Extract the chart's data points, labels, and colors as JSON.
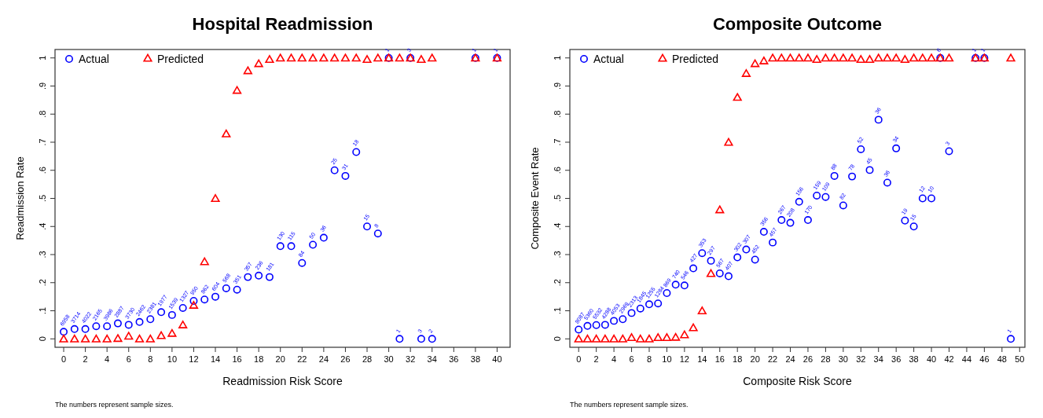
{
  "chart_data": [
    {
      "type": "scatter",
      "title": "Hospital Readmission",
      "xlabel": "Readmission Risk Score",
      "ylabel": "Readmission Rate",
      "xlim": [
        -0.8,
        41.2
      ],
      "ylim": [
        -0.03,
        1.03
      ],
      "xticks": [
        0,
        2,
        4,
        6,
        8,
        10,
        12,
        14,
        16,
        18,
        20,
        22,
        24,
        26,
        28,
        30,
        32,
        34,
        36,
        38,
        40
      ],
      "yticks": [
        {
          "value": 0,
          "label": "0"
        },
        {
          "value": 0.1,
          "label": ".1"
        },
        {
          "value": 0.2,
          "label": ".2"
        },
        {
          "value": 0.3,
          "label": ".3"
        },
        {
          "value": 0.4,
          "label": ".4"
        },
        {
          "value": 0.5,
          "label": ".5"
        },
        {
          "value": 0.6,
          "label": ".6"
        },
        {
          "value": 0.7,
          "label": ".7"
        },
        {
          "value": 0.8,
          "label": ".8"
        },
        {
          "value": 0.9,
          "label": ".9"
        },
        {
          "value": 1,
          "label": "1"
        }
      ],
      "legend": "top left",
      "annotations": [
        "The numbers represent sample sizes.",
        {
          "text": "6958",
          "x": 0,
          "y": 0.025
        },
        {
          "text": "3714",
          "x": 1,
          "y": 0.035
        },
        {
          "text": "4022",
          "x": 2,
          "y": 0.035
        },
        {
          "text": "2165",
          "x": 3,
          "y": 0.045
        },
        {
          "text": "3986",
          "x": 4,
          "y": 0.045
        },
        {
          "text": "2887",
          "x": 5,
          "y": 0.055
        },
        {
          "text": "3730",
          "x": 6,
          "y": 0.05
        },
        {
          "text": "2462",
          "x": 7,
          "y": 0.06
        },
        {
          "text": "2381",
          "x": 8,
          "y": 0.07
        },
        {
          "text": "1977",
          "x": 9,
          "y": 0.095
        },
        {
          "text": "1539",
          "x": 10,
          "y": 0.085
        },
        {
          "text": "1327",
          "x": 11,
          "y": 0.11
        },
        {
          "text": "950",
          "x": 12,
          "y": 0.135
        },
        {
          "text": "862",
          "x": 13,
          "y": 0.14
        },
        {
          "text": "604",
          "x": 14,
          "y": 0.15
        },
        {
          "text": "568",
          "x": 15,
          "y": 0.18
        },
        {
          "text": "351",
          "x": 16,
          "y": 0.175
        },
        {
          "text": "357",
          "x": 17,
          "y": 0.22
        },
        {
          "text": "236",
          "x": 18,
          "y": 0.225
        },
        {
          "text": "181",
          "x": 19,
          "y": 0.22
        },
        {
          "text": "130",
          "x": 20,
          "y": 0.33
        },
        {
          "text": "115",
          "x": 21,
          "y": 0.33
        },
        {
          "text": "84",
          "x": 22,
          "y": 0.27
        },
        {
          "text": "50",
          "x": 23,
          "y": 0.335
        },
        {
          "text": "36",
          "x": 24,
          "y": 0.36
        },
        {
          "text": "25",
          "x": 25,
          "y": 0.6
        },
        {
          "text": "31",
          "x": 26,
          "y": 0.58
        },
        {
          "text": "18",
          "x": 27,
          "y": 0.665
        },
        {
          "text": "15",
          "x": 28,
          "y": 0.4
        },
        {
          "text": "8",
          "x": 29,
          "y": 0.375
        },
        {
          "text": "1",
          "x": 30,
          "y": 1
        },
        {
          "text": "1",
          "x": 31,
          "y": 0
        },
        {
          "text": "3",
          "x": 32,
          "y": 1
        },
        {
          "text": "3",
          "x": 33,
          "y": 0
        },
        {
          "text": "2",
          "x": 34,
          "y": 0
        },
        {
          "text": "1",
          "x": 38,
          "y": 1
        },
        {
          "text": "1",
          "x": 40,
          "y": 1
        }
      ],
      "series": [
        {
          "name": "Actual",
          "color": "#0000ff",
          "marker": "circle",
          "x": [
            0,
            1,
            2,
            3,
            4,
            5,
            6,
            7,
            8,
            9,
            10,
            11,
            12,
            13,
            14,
            15,
            16,
            17,
            18,
            19,
            20,
            21,
            22,
            23,
            24,
            25,
            26,
            27,
            28,
            29,
            30,
            31,
            32,
            33,
            34,
            38,
            40
          ],
          "values": [
            0.025,
            0.035,
            0.035,
            0.045,
            0.045,
            0.055,
            0.05,
            0.06,
            0.07,
            0.095,
            0.085,
            0.11,
            0.135,
            0.14,
            0.15,
            0.18,
            0.175,
            0.22,
            0.225,
            0.22,
            0.33,
            0.33,
            0.27,
            0.335,
            0.36,
            0.6,
            0.58,
            0.665,
            0.4,
            0.375,
            1,
            0,
            1,
            0,
            0,
            1,
            1
          ]
        },
        {
          "name": "Predicted",
          "color": "#ff0000",
          "marker": "triangle",
          "x": [
            0,
            1,
            2,
            3,
            4,
            5,
            6,
            7,
            8,
            9,
            10,
            11,
            12,
            13,
            14,
            15,
            16,
            17,
            18,
            19,
            20,
            21,
            22,
            23,
            24,
            25,
            26,
            27,
            28,
            29,
            30,
            31,
            32,
            33,
            34,
            38,
            40
          ],
          "values": [
            0,
            0,
            0,
            0,
            0,
            0.002,
            0.01,
            0,
            0,
            0.012,
            0.02,
            0.05,
            0.12,
            0.275,
            0.5,
            0.73,
            0.885,
            0.955,
            0.98,
            0.995,
            1,
            1,
            1,
            1,
            1,
            1,
            1,
            1,
            0.995,
            1,
            1,
            1,
            1,
            0.995,
            1,
            1,
            1
          ]
        }
      ]
    },
    {
      "type": "scatter",
      "title": "Composite Outcome",
      "xlabel": "Composite Risk Score",
      "ylabel": "Composite Event Rate",
      "xlim": [
        -1,
        50.6
      ],
      "ylim": [
        -0.03,
        1.03
      ],
      "xticks": [
        0,
        2,
        4,
        6,
        8,
        10,
        12,
        14,
        16,
        18,
        20,
        22,
        24,
        26,
        28,
        30,
        32,
        34,
        36,
        38,
        40,
        42,
        44,
        46,
        48,
        50
      ],
      "yticks": [
        {
          "value": 0,
          "label": "0"
        },
        {
          "value": 0.1,
          "label": ".1"
        },
        {
          "value": 0.2,
          "label": ".2"
        },
        {
          "value": 0.3,
          "label": ".3"
        },
        {
          "value": 0.4,
          "label": ".4"
        },
        {
          "value": 0.5,
          "label": ".5"
        },
        {
          "value": 0.6,
          "label": ".6"
        },
        {
          "value": 0.7,
          "label": ".7"
        },
        {
          "value": 0.8,
          "label": ".8"
        },
        {
          "value": 0.9,
          "label": ".9"
        },
        {
          "value": 1,
          "label": "1"
        }
      ],
      "legend": "top left",
      "annotations": [
        "The numbers represent sample sizes.",
        {
          "text": "8087",
          "x": 0,
          "y": 0.033
        },
        {
          "text": "5360",
          "x": 1,
          "y": 0.046
        },
        {
          "text": "5532",
          "x": 2,
          "y": 0.049
        },
        {
          "text": "4288",
          "x": 3,
          "y": 0.05
        },
        {
          "text": "4053",
          "x": 4,
          "y": 0.064
        },
        {
          "text": "2969",
          "x": 5,
          "y": 0.07
        },
        {
          "text": "2313",
          "x": 6,
          "y": 0.092
        },
        {
          "text": "1845",
          "x": 7,
          "y": 0.108
        },
        {
          "text": "1255",
          "x": 8,
          "y": 0.123
        },
        {
          "text": "1284",
          "x": 9,
          "y": 0.126
        },
        {
          "text": "869",
          "x": 10,
          "y": 0.163
        },
        {
          "text": "740",
          "x": 11,
          "y": 0.193
        },
        {
          "text": "546",
          "x": 12,
          "y": 0.19
        },
        {
          "text": "427",
          "x": 13,
          "y": 0.251
        },
        {
          "text": "353",
          "x": 14,
          "y": 0.305
        },
        {
          "text": "297",
          "x": 15,
          "y": 0.278
        },
        {
          "text": "567",
          "x": 16,
          "y": 0.233
        },
        {
          "text": "407",
          "x": 17,
          "y": 0.223
        },
        {
          "text": "302",
          "x": 18,
          "y": 0.29
        },
        {
          "text": "307",
          "x": 19,
          "y": 0.318
        },
        {
          "text": "452",
          "x": 20,
          "y": 0.282
        },
        {
          "text": "356",
          "x": 21,
          "y": 0.381
        },
        {
          "text": "457",
          "x": 22,
          "y": 0.343
        },
        {
          "text": "267",
          "x": 23,
          "y": 0.423
        },
        {
          "text": "208",
          "x": 24,
          "y": 0.413
        },
        {
          "text": "156",
          "x": 25,
          "y": 0.488
        },
        {
          "text": "170",
          "x": 26,
          "y": 0.423
        },
        {
          "text": "159",
          "x": 27,
          "y": 0.51
        },
        {
          "text": "109",
          "x": 28,
          "y": 0.505
        },
        {
          "text": "88",
          "x": 29,
          "y": 0.58
        },
        {
          "text": "82",
          "x": 30,
          "y": 0.475
        },
        {
          "text": "78",
          "x": 31,
          "y": 0.578
        },
        {
          "text": "52",
          "x": 32,
          "y": 0.675
        },
        {
          "text": "45",
          "x": 33,
          "y": 0.601
        },
        {
          "text": "36",
          "x": 34,
          "y": 0.78
        },
        {
          "text": "36",
          "x": 35,
          "y": 0.556
        },
        {
          "text": "34",
          "x": 36,
          "y": 0.678
        },
        {
          "text": "19",
          "x": 37,
          "y": 0.421
        },
        {
          "text": "15",
          "x": 38,
          "y": 0.4
        },
        {
          "text": "12",
          "x": 39,
          "y": 0.5
        },
        {
          "text": "10",
          "x": 40,
          "y": 0.5
        },
        {
          "text": "6",
          "x": 41,
          "y": 1
        },
        {
          "text": "3",
          "x": 42,
          "y": 0.668
        },
        {
          "text": "1",
          "x": 45,
          "y": 1
        },
        {
          "text": "1",
          "x": 46,
          "y": 1
        },
        {
          "text": "1",
          "x": 49,
          "y": 0
        }
      ],
      "series": [
        {
          "name": "Actual",
          "color": "#0000ff",
          "marker": "circle",
          "x": [
            0,
            1,
            2,
            3,
            4,
            5,
            6,
            7,
            8,
            9,
            10,
            11,
            12,
            13,
            14,
            15,
            16,
            17,
            18,
            19,
            20,
            21,
            22,
            23,
            24,
            25,
            26,
            27,
            28,
            29,
            30,
            31,
            32,
            33,
            34,
            35,
            36,
            37,
            38,
            39,
            40,
            41,
            42,
            45,
            46,
            49
          ],
          "values": [
            0.033,
            0.046,
            0.049,
            0.05,
            0.064,
            0.07,
            0.092,
            0.108,
            0.123,
            0.126,
            0.163,
            0.193,
            0.19,
            0.251,
            0.305,
            0.278,
            0.233,
            0.223,
            0.29,
            0.318,
            0.282,
            0.381,
            0.343,
            0.423,
            0.413,
            0.488,
            0.423,
            0.51,
            0.505,
            0.58,
            0.475,
            0.578,
            0.675,
            0.601,
            0.78,
            0.556,
            0.678,
            0.421,
            0.4,
            0.5,
            0.5,
            1,
            0.668,
            1,
            1,
            0
          ]
        },
        {
          "name": "Predicted",
          "color": "#ff0000",
          "marker": "triangle",
          "x": [
            0,
            1,
            2,
            3,
            4,
            5,
            6,
            7,
            8,
            9,
            10,
            11,
            12,
            13,
            14,
            15,
            16,
            17,
            18,
            19,
            20,
            21,
            22,
            23,
            24,
            25,
            26,
            27,
            28,
            29,
            30,
            31,
            32,
            33,
            34,
            35,
            36,
            37,
            38,
            39,
            40,
            41,
            42,
            45,
            46,
            49
          ],
          "values": [
            0,
            0,
            0,
            0,
            0,
            0,
            0.005,
            0,
            0,
            0.005,
            0.005,
            0.006,
            0.015,
            0.04,
            0.1,
            0.233,
            0.46,
            0.7,
            0.86,
            0.945,
            0.98,
            0.99,
            1,
            1,
            1,
            1,
            1,
            0.995,
            1,
            1,
            1,
            1,
            0.995,
            0.995,
            1,
            1,
            1,
            0.995,
            1,
            1,
            1,
            1,
            1,
            1,
            1,
            1
          ]
        }
      ]
    }
  ]
}
